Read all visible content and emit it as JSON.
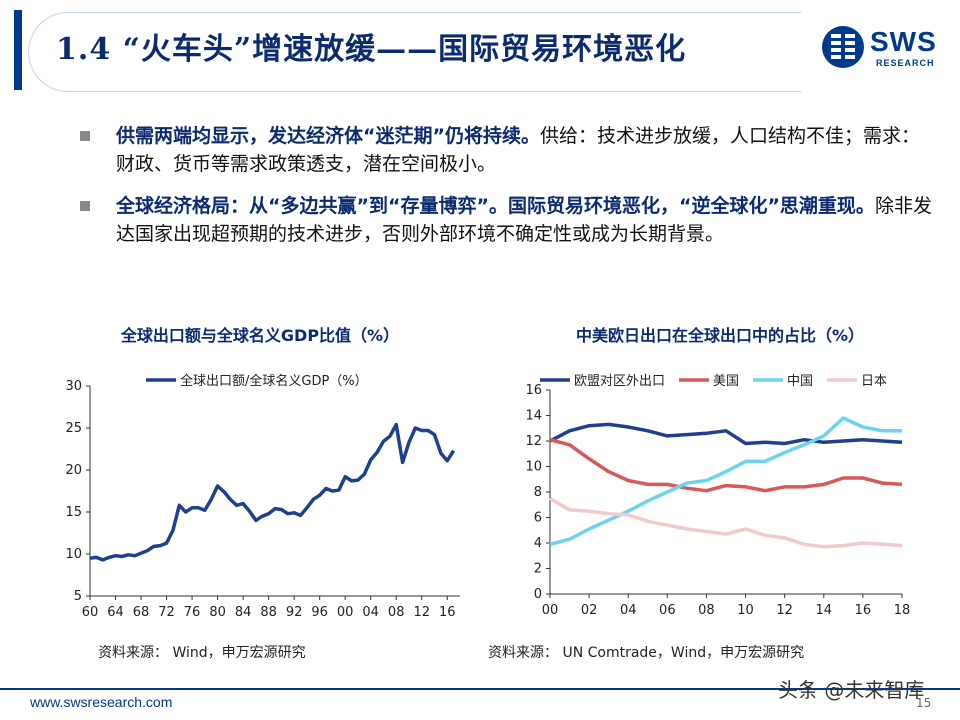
{
  "header": {
    "title": "1.4 “火车头”增速放缓——国际贸易环境恶化",
    "logo_text": "SWS",
    "logo_sub": "RESEARCH"
  },
  "bullets": [
    {
      "bold": "供需两端均显示，发达经济体“迷茫期”仍将持续。",
      "text": "供给：技术进步放缓，人口结构不佳；需求：财政、货币等需求政策透支，潜在空间极小。"
    },
    {
      "bold": "全球经济格局：从“多边共赢”到“存量博弈”。国际贸易环境恶化，“逆全球化”思潮重现。",
      "text": "除非发达国家出现超预期的技术进步，否则外部环境不确定性或成为长期背景。"
    }
  ],
  "chart_data": [
    {
      "type": "line",
      "title": "全球出口额与全球名义GDP比值（%）",
      "source": "资料来源： Wind，申万宏源研究",
      "ylim": [
        5,
        30
      ],
      "yticks": [
        5,
        10,
        15,
        20,
        25,
        30
      ],
      "xlim": [
        1960,
        2018
      ],
      "xtick_labels": [
        "60",
        "64",
        "68",
        "72",
        "76",
        "80",
        "84",
        "88",
        "92",
        "96",
        "00",
        "04",
        "08",
        "12",
        "16"
      ],
      "xtick_values": [
        1960,
        1964,
        1968,
        1972,
        1976,
        1980,
        1984,
        1988,
        1992,
        1996,
        2000,
        2004,
        2008,
        2012,
        2016
      ],
      "legend_position": "top",
      "series": [
        {
          "name": "全球出口额/全球名义GDP（%）",
          "color": "#1f3f8f",
          "x": [
            1960,
            1961,
            1962,
            1963,
            1964,
            1965,
            1966,
            1967,
            1968,
            1969,
            1970,
            1971,
            1972,
            1973,
            1974,
            1975,
            1976,
            1977,
            1978,
            1979,
            1980,
            1981,
            1982,
            1983,
            1984,
            1985,
            1986,
            1987,
            1988,
            1989,
            1990,
            1991,
            1992,
            1993,
            1994,
            1995,
            1996,
            1997,
            1998,
            1999,
            2000,
            2001,
            2002,
            2003,
            2004,
            2005,
            2006,
            2007,
            2008,
            2009,
            2010,
            2011,
            2012,
            2013,
            2014,
            2015,
            2016,
            2017
          ],
          "values": [
            9.5,
            9.6,
            9.3,
            9.6,
            9.8,
            9.7,
            9.9,
            9.8,
            10.1,
            10.4,
            10.9,
            11.0,
            11.3,
            12.8,
            15.8,
            15.0,
            15.5,
            15.5,
            15.2,
            16.5,
            18.1,
            17.4,
            16.5,
            15.8,
            16.0,
            15.1,
            14.0,
            14.5,
            14.8,
            15.4,
            15.3,
            14.8,
            14.9,
            14.6,
            15.5,
            16.5,
            17.0,
            17.8,
            17.5,
            17.6,
            19.2,
            18.7,
            18.8,
            19.5,
            21.2,
            22.1,
            23.4,
            24.0,
            25.4,
            20.9,
            23.3,
            25.0,
            24.7,
            24.7,
            24.2,
            22.0,
            21.1,
            22.3
          ]
        }
      ]
    },
    {
      "type": "line",
      "title": "中美欧日出口在全球出口中的占比（%）",
      "source": "资料来源： UN Comtrade，Wind，申万宏源研究",
      "ylim": [
        0,
        16
      ],
      "yticks": [
        0,
        2,
        4,
        6,
        8,
        10,
        12,
        14,
        16
      ],
      "xlim": [
        2000,
        2018
      ],
      "xtick_labels": [
        "00",
        "02",
        "04",
        "06",
        "08",
        "10",
        "12",
        "14",
        "16",
        "18"
      ],
      "xtick_values": [
        2000,
        2002,
        2004,
        2006,
        2008,
        2010,
        2012,
        2014,
        2016,
        2018
      ],
      "legend_position": "top",
      "x": [
        2000,
        2001,
        2002,
        2003,
        2004,
        2005,
        2006,
        2007,
        2008,
        2009,
        2010,
        2011,
        2012,
        2013,
        2014,
        2015,
        2016,
        2017,
        2018
      ],
      "series": [
        {
          "name": "欧盟对区外出口",
          "color": "#1f3f8f",
          "values": [
            12.0,
            12.8,
            13.2,
            13.3,
            13.1,
            12.8,
            12.4,
            12.5,
            12.6,
            12.8,
            11.8,
            11.9,
            11.8,
            12.1,
            11.9,
            12.0,
            12.1,
            12.0,
            11.9
          ]
        },
        {
          "name": "美国",
          "color": "#d9585a",
          "values": [
            12.1,
            11.7,
            10.6,
            9.6,
            8.9,
            8.6,
            8.6,
            8.3,
            8.1,
            8.5,
            8.4,
            8.1,
            8.4,
            8.4,
            8.6,
            9.1,
            9.1,
            8.7,
            8.6
          ]
        },
        {
          "name": "中国",
          "color": "#6ed3ee",
          "values": [
            3.9,
            4.3,
            5.1,
            5.8,
            6.5,
            7.3,
            8.0,
            8.7,
            8.9,
            9.6,
            10.4,
            10.4,
            11.1,
            11.7,
            12.4,
            13.8,
            13.1,
            12.8,
            12.8
          ]
        },
        {
          "name": "日本",
          "color": "#f4c9cc",
          "values": [
            7.5,
            6.6,
            6.5,
            6.3,
            6.2,
            5.7,
            5.4,
            5.1,
            4.9,
            4.7,
            5.1,
            4.6,
            4.4,
            3.9,
            3.7,
            3.8,
            4.0,
            3.9,
            3.8
          ]
        }
      ]
    }
  ],
  "footer": {
    "url": "www.swsresearch.com",
    "page": "15",
    "watermark": "头条 @未来智库"
  }
}
